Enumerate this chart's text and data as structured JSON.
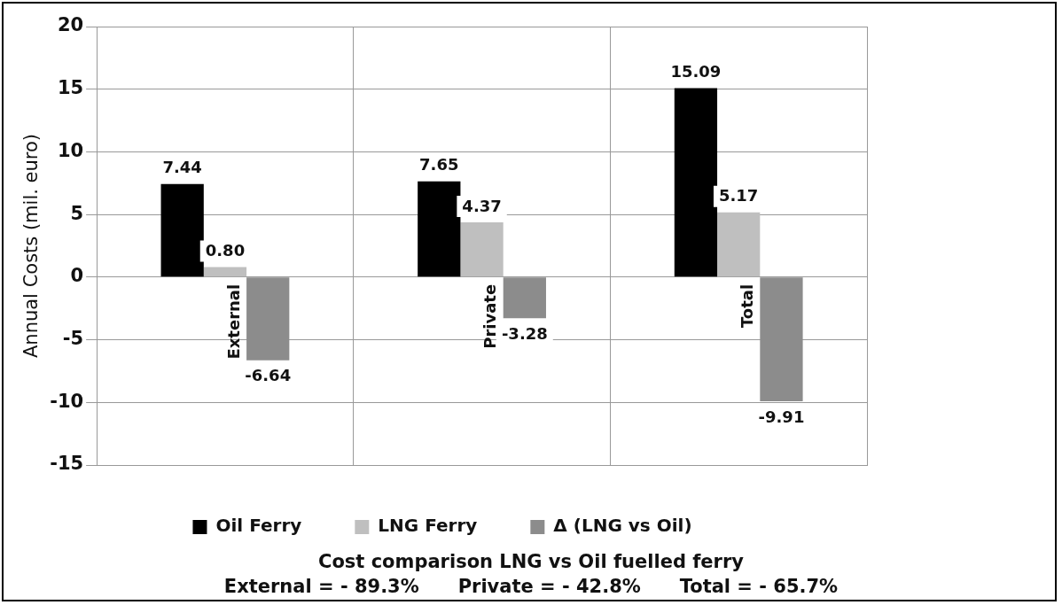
{
  "chart_data": {
    "type": "bar",
    "title": "Cost comparison LNG vs Oil fuelled ferry",
    "subtitle": "External = - 89.3%      Private = - 42.8%      Total = - 65.7%",
    "ylabel": "Annual Costs (mil. euro)",
    "categories": [
      "External",
      "Private",
      "Total"
    ],
    "series": [
      {
        "name": "Oil Ferry",
        "color": "#000000",
        "values": [
          7.44,
          7.65,
          15.09
        ],
        "value_labels": [
          "7.44",
          "7.65",
          "15.09"
        ]
      },
      {
        "name": "LNG Ferry",
        "color": "#bfbfbf",
        "values": [
          0.8,
          4.37,
          5.17
        ],
        "value_labels": [
          "0.80",
          "4.37",
          "5.17"
        ]
      },
      {
        "name": "Δ (LNG vs Oil)",
        "color": "#8c8c8c",
        "values": [
          -6.64,
          -3.28,
          -9.91
        ],
        "value_labels": [
          "-6.64",
          "-3.28",
          "-9.91"
        ]
      }
    ],
    "ylim": [
      -15,
      20
    ],
    "yticks": [
      -15,
      -10,
      -5,
      0,
      5,
      10,
      15,
      20
    ],
    "grid": true,
    "legend": "bottom"
  }
}
